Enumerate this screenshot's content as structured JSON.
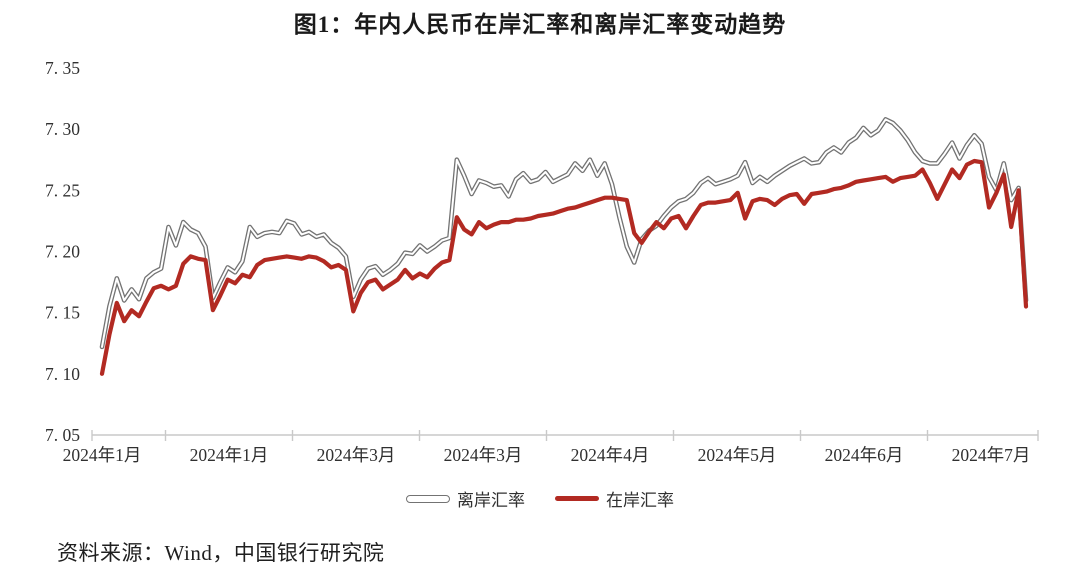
{
  "title": "图1：年内人民币在岸汇率和离岸汇率变动趋势",
  "source_note": "资料来源：Wind，中国银行研究院",
  "colors": {
    "onshore_line": "#b22a22",
    "offshore_outline": "#737373",
    "offshore_core": "#ffffff",
    "axis": "#c9c9c9",
    "text": "#303030"
  },
  "legend": {
    "offshore_label": "离岸汇率",
    "onshore_label": "在岸汇率"
  },
  "chart_data": {
    "type": "line",
    "title": "图1：年内人民币在岸汇率和离岸汇率变动趋势",
    "ylabel": "",
    "xlabel": "",
    "ylim": [
      7.05,
      7.35
    ],
    "grid": false,
    "legend_position": "bottom",
    "yticks": [
      7.35,
      7.3,
      7.25,
      7.2,
      7.15,
      7.1,
      7.05
    ],
    "ytick_labels": [
      "7. 35",
      "7. 30",
      "7. 25",
      "7. 20",
      "7. 15",
      "7. 10",
      "7. 05"
    ],
    "xtick_labels": [
      "2024年1月",
      "2024年1月",
      "2024年3月",
      "2024年3月",
      "2024年4月",
      "2024年5月",
      "2024年6月",
      "2024年7月"
    ],
    "series": [
      {
        "name": "离岸汇率",
        "style": "outlined-gray",
        "color": "#737373",
        "values": [
          7.122,
          7.155,
          7.178,
          7.16,
          7.169,
          7.161,
          7.178,
          7.183,
          7.186,
          7.22,
          7.205,
          7.224,
          7.218,
          7.215,
          7.204,
          7.162,
          7.175,
          7.187,
          7.183,
          7.192,
          7.22,
          7.212,
          7.215,
          7.216,
          7.215,
          7.225,
          7.223,
          7.214,
          7.216,
          7.212,
          7.214,
          7.207,
          7.203,
          7.196,
          7.163,
          7.177,
          7.186,
          7.188,
          7.181,
          7.185,
          7.19,
          7.199,
          7.198,
          7.205,
          7.2,
          7.204,
          7.209,
          7.211,
          7.275,
          7.262,
          7.247,
          7.258,
          7.256,
          7.253,
          7.254,
          7.245,
          7.259,
          7.264,
          7.257,
          7.259,
          7.265,
          7.257,
          7.26,
          7.263,
          7.272,
          7.266,
          7.275,
          7.262,
          7.272,
          7.255,
          7.228,
          7.204,
          7.191,
          7.21,
          7.217,
          7.221,
          7.229,
          7.236,
          7.241,
          7.243,
          7.248,
          7.256,
          7.26,
          7.255,
          7.257,
          7.259,
          7.262,
          7.273,
          7.256,
          7.261,
          7.257,
          7.262,
          7.266,
          7.27,
          7.273,
          7.276,
          7.272,
          7.273,
          7.281,
          7.285,
          7.281,
          7.289,
          7.293,
          7.301,
          7.295,
          7.299,
          7.308,
          7.305,
          7.299,
          7.291,
          7.281,
          7.274,
          7.272,
          7.272,
          7.28,
          7.289,
          7.276,
          7.287,
          7.295,
          7.288,
          7.261,
          7.25,
          7.272,
          7.242,
          7.252,
          7.16
        ]
      },
      {
        "name": "在岸汇率",
        "style": "solid-red",
        "color": "#b22a22",
        "values": [
          7.1,
          7.132,
          7.158,
          7.143,
          7.152,
          7.147,
          7.159,
          7.17,
          7.172,
          7.169,
          7.172,
          7.19,
          7.196,
          7.194,
          7.193,
          7.152,
          7.164,
          7.177,
          7.174,
          7.181,
          7.179,
          7.189,
          7.193,
          7.194,
          7.195,
          7.196,
          7.195,
          7.194,
          7.196,
          7.195,
          7.192,
          7.187,
          7.189,
          7.185,
          7.151,
          7.166,
          7.175,
          7.177,
          7.169,
          7.173,
          7.177,
          7.185,
          7.178,
          7.182,
          7.179,
          7.186,
          7.191,
          7.193,
          7.228,
          7.218,
          7.214,
          7.224,
          7.219,
          7.222,
          7.224,
          7.224,
          7.226,
          7.226,
          7.227,
          7.229,
          7.23,
          7.231,
          7.233,
          7.235,
          7.236,
          7.238,
          7.24,
          7.242,
          7.244,
          7.244,
          7.243,
          7.242,
          7.215,
          7.207,
          7.216,
          7.224,
          7.219,
          7.227,
          7.229,
          7.219,
          7.229,
          7.238,
          7.24,
          7.24,
          7.241,
          7.242,
          7.248,
          7.227,
          7.241,
          7.243,
          7.242,
          7.238,
          7.243,
          7.246,
          7.247,
          7.239,
          7.247,
          7.248,
          7.249,
          7.251,
          7.252,
          7.254,
          7.257,
          7.258,
          7.259,
          7.26,
          7.261,
          7.257,
          7.26,
          7.261,
          7.262,
          7.267,
          7.256,
          7.243,
          7.255,
          7.267,
          7.26,
          7.271,
          7.274,
          7.273,
          7.236,
          7.248,
          7.263,
          7.22,
          7.25,
          7.155
        ]
      }
    ]
  }
}
